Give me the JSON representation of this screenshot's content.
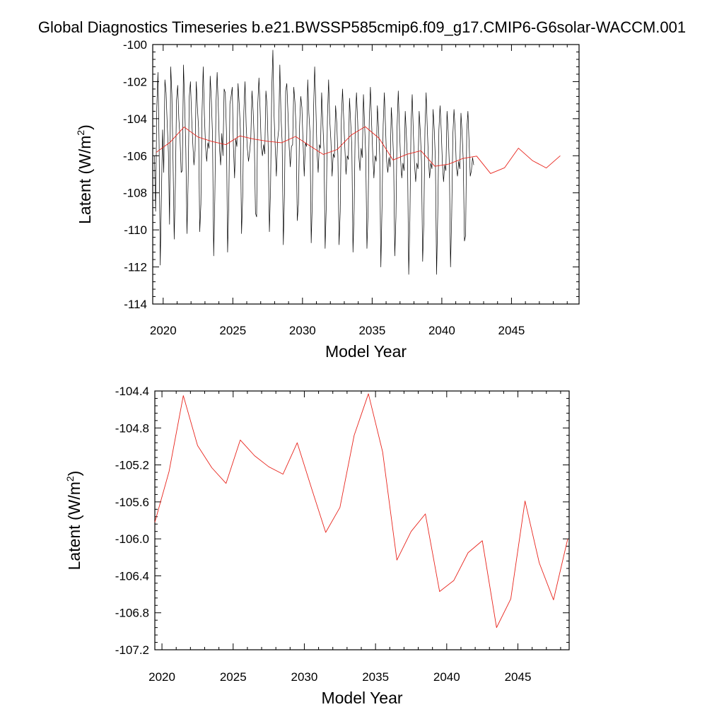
{
  "title": "Global Diagnostics Timeseries b.e21.BWSSP585cmip6.f09_g17.CMIP6-G6solar-WACCM.001",
  "colors": {
    "monthly": "#000000",
    "annual": "#e8241c",
    "frame": "#000000"
  },
  "chart_data": [
    {
      "type": "line",
      "xlabel": "Model Year",
      "ylabel": "Latent (W/m²)",
      "ylabel_main": "Latent (W/m",
      "ylabel_sup": "2",
      "ylabel_close": ")",
      "xlim": [
        2019.25,
        2049.85
      ],
      "ylim": [
        -114,
        -100
      ],
      "xticks": [
        2020,
        2025,
        2030,
        2035,
        2040,
        2045
      ],
      "xtick_labels": [
        "2020",
        "2025",
        "2030",
        "2035",
        "2040",
        "2045"
      ],
      "yticks": [
        -114,
        -112,
        -110,
        -108,
        -106,
        -104,
        -102,
        -100
      ],
      "ytick_labels": [
        "-114",
        "-112",
        "-110",
        "-108",
        "-106",
        "-104",
        "-102",
        "-100"
      ],
      "series": [
        {
          "style": "monthly",
          "x_start": 2019.375,
          "x_step": 0.08333,
          "values": [
            -106.0,
            -109.0,
            -103.4,
            -101.5,
            -105.4,
            -111.9,
            -108.1,
            -104.6,
            -106.9,
            -101.9,
            -102.6,
            -104.3,
            -105.8,
            -109.7,
            -101.2,
            -102.7,
            -106.3,
            -110.5,
            -107.6,
            -103.0,
            -102.2,
            -104.0,
            -105.0,
            -106.9,
            -106.8,
            -101.1,
            -103.2,
            -105.6,
            -110.2,
            -107.4,
            -102.8,
            -102.0,
            -103.9,
            -105.3,
            -106.5,
            -105.7,
            -102.0,
            -103.4,
            -104.5,
            -110.1,
            -108.6,
            -103.6,
            -101.2,
            -103.8,
            -105.5,
            -106.3,
            -105.3,
            -105.6,
            -101.7,
            -103.0,
            -104.9,
            -111.4,
            -108.3,
            -103.2,
            -101.5,
            -103.4,
            -105.6,
            -106.5,
            -104.8,
            -106.0,
            -102.4,
            -102.6,
            -104.7,
            -111.2,
            -108.6,
            -103.2,
            -102.8,
            -102.3,
            -105.5,
            -107.2,
            -105.1,
            -105.5,
            -102.1,
            -103.2,
            -104.6,
            -110.2,
            -108.2,
            -103.6,
            -102.0,
            -104.4,
            -105.6,
            -106.3,
            -105.8,
            -105.0,
            -102.5,
            -103.6,
            -105.2,
            -109.1,
            -109.3,
            -103.2,
            -101.8,
            -103.5,
            -105.5,
            -106.0,
            -105.4,
            -105.9,
            -102.5,
            -103.3,
            -105.6,
            -110.1,
            -107.8,
            -102.5,
            -100.3,
            -103.8,
            -105.5,
            -107.1,
            -105.2,
            -104.6,
            -101.1,
            -103.9,
            -105.3,
            -110.8,
            -108.0,
            -102.5,
            -102.1,
            -103.7,
            -105.5,
            -106.6,
            -105.5,
            -105.4,
            -102.3,
            -103.1,
            -104.6,
            -109.5,
            -108.6,
            -104.4,
            -102.8,
            -103.4,
            -105.3,
            -107.1,
            -105.3,
            -105.5,
            -101.9,
            -103.7,
            -104.8,
            -110.7,
            -108.4,
            -103.6,
            -101.2,
            -103.3,
            -105.8,
            -106.9,
            -105.4,
            -105.6,
            -102.6,
            -104.2,
            -105.7,
            -111.0,
            -108.7,
            -103.9,
            -101.9,
            -104.1,
            -105.2,
            -107.1,
            -105.9,
            -106.1,
            -103.3,
            -104.2,
            -106.0,
            -110.8,
            -109.0,
            -104.0,
            -102.4,
            -104.0,
            -105.6,
            -107.0,
            -106.0,
            -106.2,
            -102.9,
            -104.2,
            -105.5,
            -111.2,
            -108.9,
            -104.1,
            -102.6,
            -104.1,
            -106.0,
            -106.8,
            -105.6,
            -106.1,
            -102.7,
            -104.3,
            -106.0,
            -111.0,
            -109.0,
            -104.1,
            -102.3,
            -104.2,
            -105.9,
            -107.2,
            -106.0,
            -106.3,
            -103.3,
            -104.5,
            -106.0,
            -112.0,
            -108.8,
            -104.3,
            -102.6,
            -104.4,
            -106.3,
            -106.9,
            -106.1,
            -106.6,
            -103.4,
            -104.6,
            -106.2,
            -111.4,
            -109.3,
            -104.4,
            -102.5,
            -104.5,
            -106.2,
            -107.2,
            -106.4,
            -106.8,
            -103.6,
            -104.9,
            -106.3,
            -112.4,
            -109.5,
            -104.3,
            -102.7,
            -104.8,
            -106.5,
            -107.4,
            -106.4,
            -106.7,
            -103.6,
            -104.7,
            -106.3,
            -111.7,
            -109.6,
            -104.5,
            -102.6,
            -104.5,
            -106.2,
            -107.2,
            -106.4,
            -106.7,
            -103.5,
            -104.6,
            -106.3,
            -112.4,
            -109.2,
            -104.6,
            -103.3,
            -104.6,
            -106.4,
            -107.4,
            -106.5,
            -106.8,
            -103.6,
            -104.7,
            -106.5,
            -112.0,
            -109.3,
            -104.9,
            -103.5,
            -104.6,
            -106.6,
            -107.1,
            -106.3,
            -106.7,
            -103.7,
            -104.8,
            -106.3,
            -110.6,
            -110.3,
            -104.6,
            -103.6,
            -105.3,
            -107.1,
            -106.8,
            -106.1,
            -106.5
          ]
        },
        {
          "style": "annual",
          "x": [
            2019.5,
            2020.5,
            2021.5,
            2022.5,
            2023.5,
            2024.5,
            2025.5,
            2026.5,
            2027.5,
            2028.5,
            2029.5,
            2030.5,
            2031.5,
            2032.5,
            2033.5,
            2034.5,
            2035.5,
            2036.5,
            2037.5,
            2038.5,
            2039.5,
            2040.5,
            2041.5,
            2042.5,
            2043.5,
            2044.5,
            2045.5,
            2046.5,
            2047.5,
            2048.5
          ],
          "values": [
            -105.82,
            -105.27,
            -104.45,
            -104.99,
            -105.23,
            -105.4,
            -104.93,
            -105.1,
            -105.22,
            -105.3,
            -104.96,
            -105.45,
            -105.93,
            -105.66,
            -104.88,
            -104.43,
            -105.06,
            -106.23,
            -105.92,
            -105.73,
            -106.57,
            -106.45,
            -106.15,
            -106.02,
            -106.96,
            -106.65,
            -105.59,
            -106.26,
            -106.66,
            -106.0
          ]
        }
      ]
    },
    {
      "type": "line",
      "xlabel": "Model Year",
      "ylabel": "Latent (W/m²)",
      "ylabel_main": "Latent (W/m",
      "ylabel_sup": "2",
      "ylabel_close": ")",
      "xlim": [
        2019.5,
        2048.6
      ],
      "ylim": [
        -107.2,
        -104.4
      ],
      "xticks": [
        2020,
        2025,
        2030,
        2035,
        2040,
        2045
      ],
      "xtick_labels": [
        "2020",
        "2025",
        "2030",
        "2035",
        "2040",
        "2045"
      ],
      "yticks": [
        -107.2,
        -106.8,
        -106.4,
        -106.0,
        -105.6,
        -105.2,
        -104.8,
        -104.4
      ],
      "ytick_labels": [
        "-107.2",
        "-106.8",
        "-106.4",
        "-106.0",
        "-105.6",
        "-105.2",
        "-104.8",
        "-104.4"
      ],
      "series": [
        {
          "style": "annual",
          "x": [
            2019.5,
            2020.5,
            2021.5,
            2022.5,
            2023.5,
            2024.5,
            2025.5,
            2026.5,
            2027.5,
            2028.5,
            2029.5,
            2030.5,
            2031.5,
            2032.5,
            2033.5,
            2034.5,
            2035.5,
            2036.5,
            2037.5,
            2038.5,
            2039.5,
            2040.5,
            2041.5,
            2042.5,
            2043.5,
            2044.5,
            2045.5,
            2046.5,
            2047.5,
            2048.5
          ],
          "values": [
            -105.82,
            -105.27,
            -104.45,
            -104.99,
            -105.23,
            -105.4,
            -104.93,
            -105.1,
            -105.22,
            -105.3,
            -104.96,
            -105.45,
            -105.93,
            -105.66,
            -104.88,
            -104.43,
            -105.06,
            -106.23,
            -105.92,
            -105.73,
            -106.57,
            -106.45,
            -106.15,
            -106.02,
            -106.96,
            -106.65,
            -105.59,
            -106.26,
            -106.66,
            -106.0
          ]
        }
      ]
    }
  ]
}
